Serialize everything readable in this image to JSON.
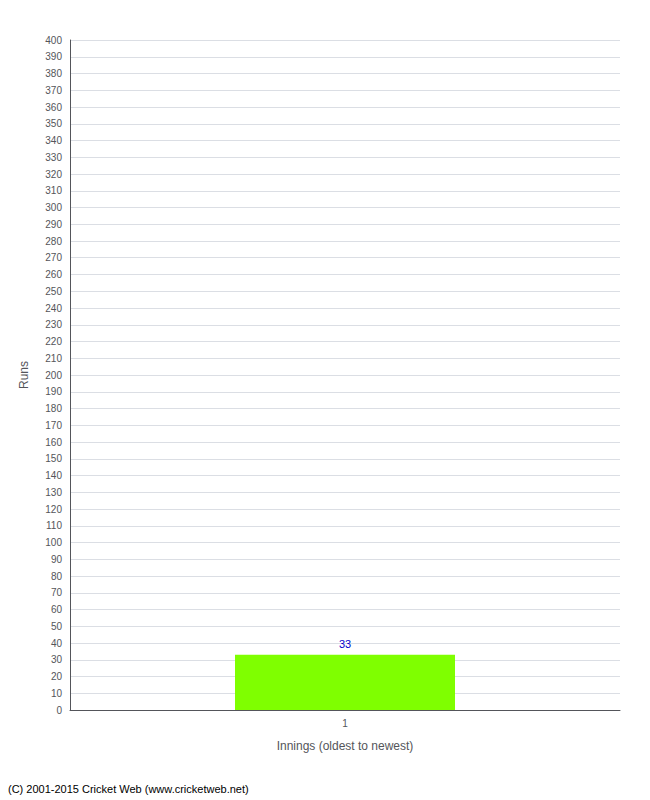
{
  "chart_data": {
    "type": "bar",
    "xlabel": "Innings (oldest to newest)",
    "ylabel": "Runs",
    "categories": [
      "1"
    ],
    "values": [
      33
    ],
    "color": "#7fff00",
    "data_labels": true,
    "ylim": [
      0,
      400
    ],
    "yticks": [
      0,
      10,
      20,
      30,
      40,
      50,
      60,
      70,
      80,
      90,
      100,
      110,
      120,
      130,
      140,
      150,
      160,
      170,
      180,
      190,
      200,
      210,
      220,
      230,
      240,
      250,
      260,
      270,
      280,
      290,
      300,
      310,
      320,
      330,
      340,
      350,
      360,
      370,
      380,
      390,
      400
    ],
    "grid": true,
    "annotations": [
      "(C) 2001-2015 Cricket Web (www.cricketweb.net)"
    ]
  }
}
